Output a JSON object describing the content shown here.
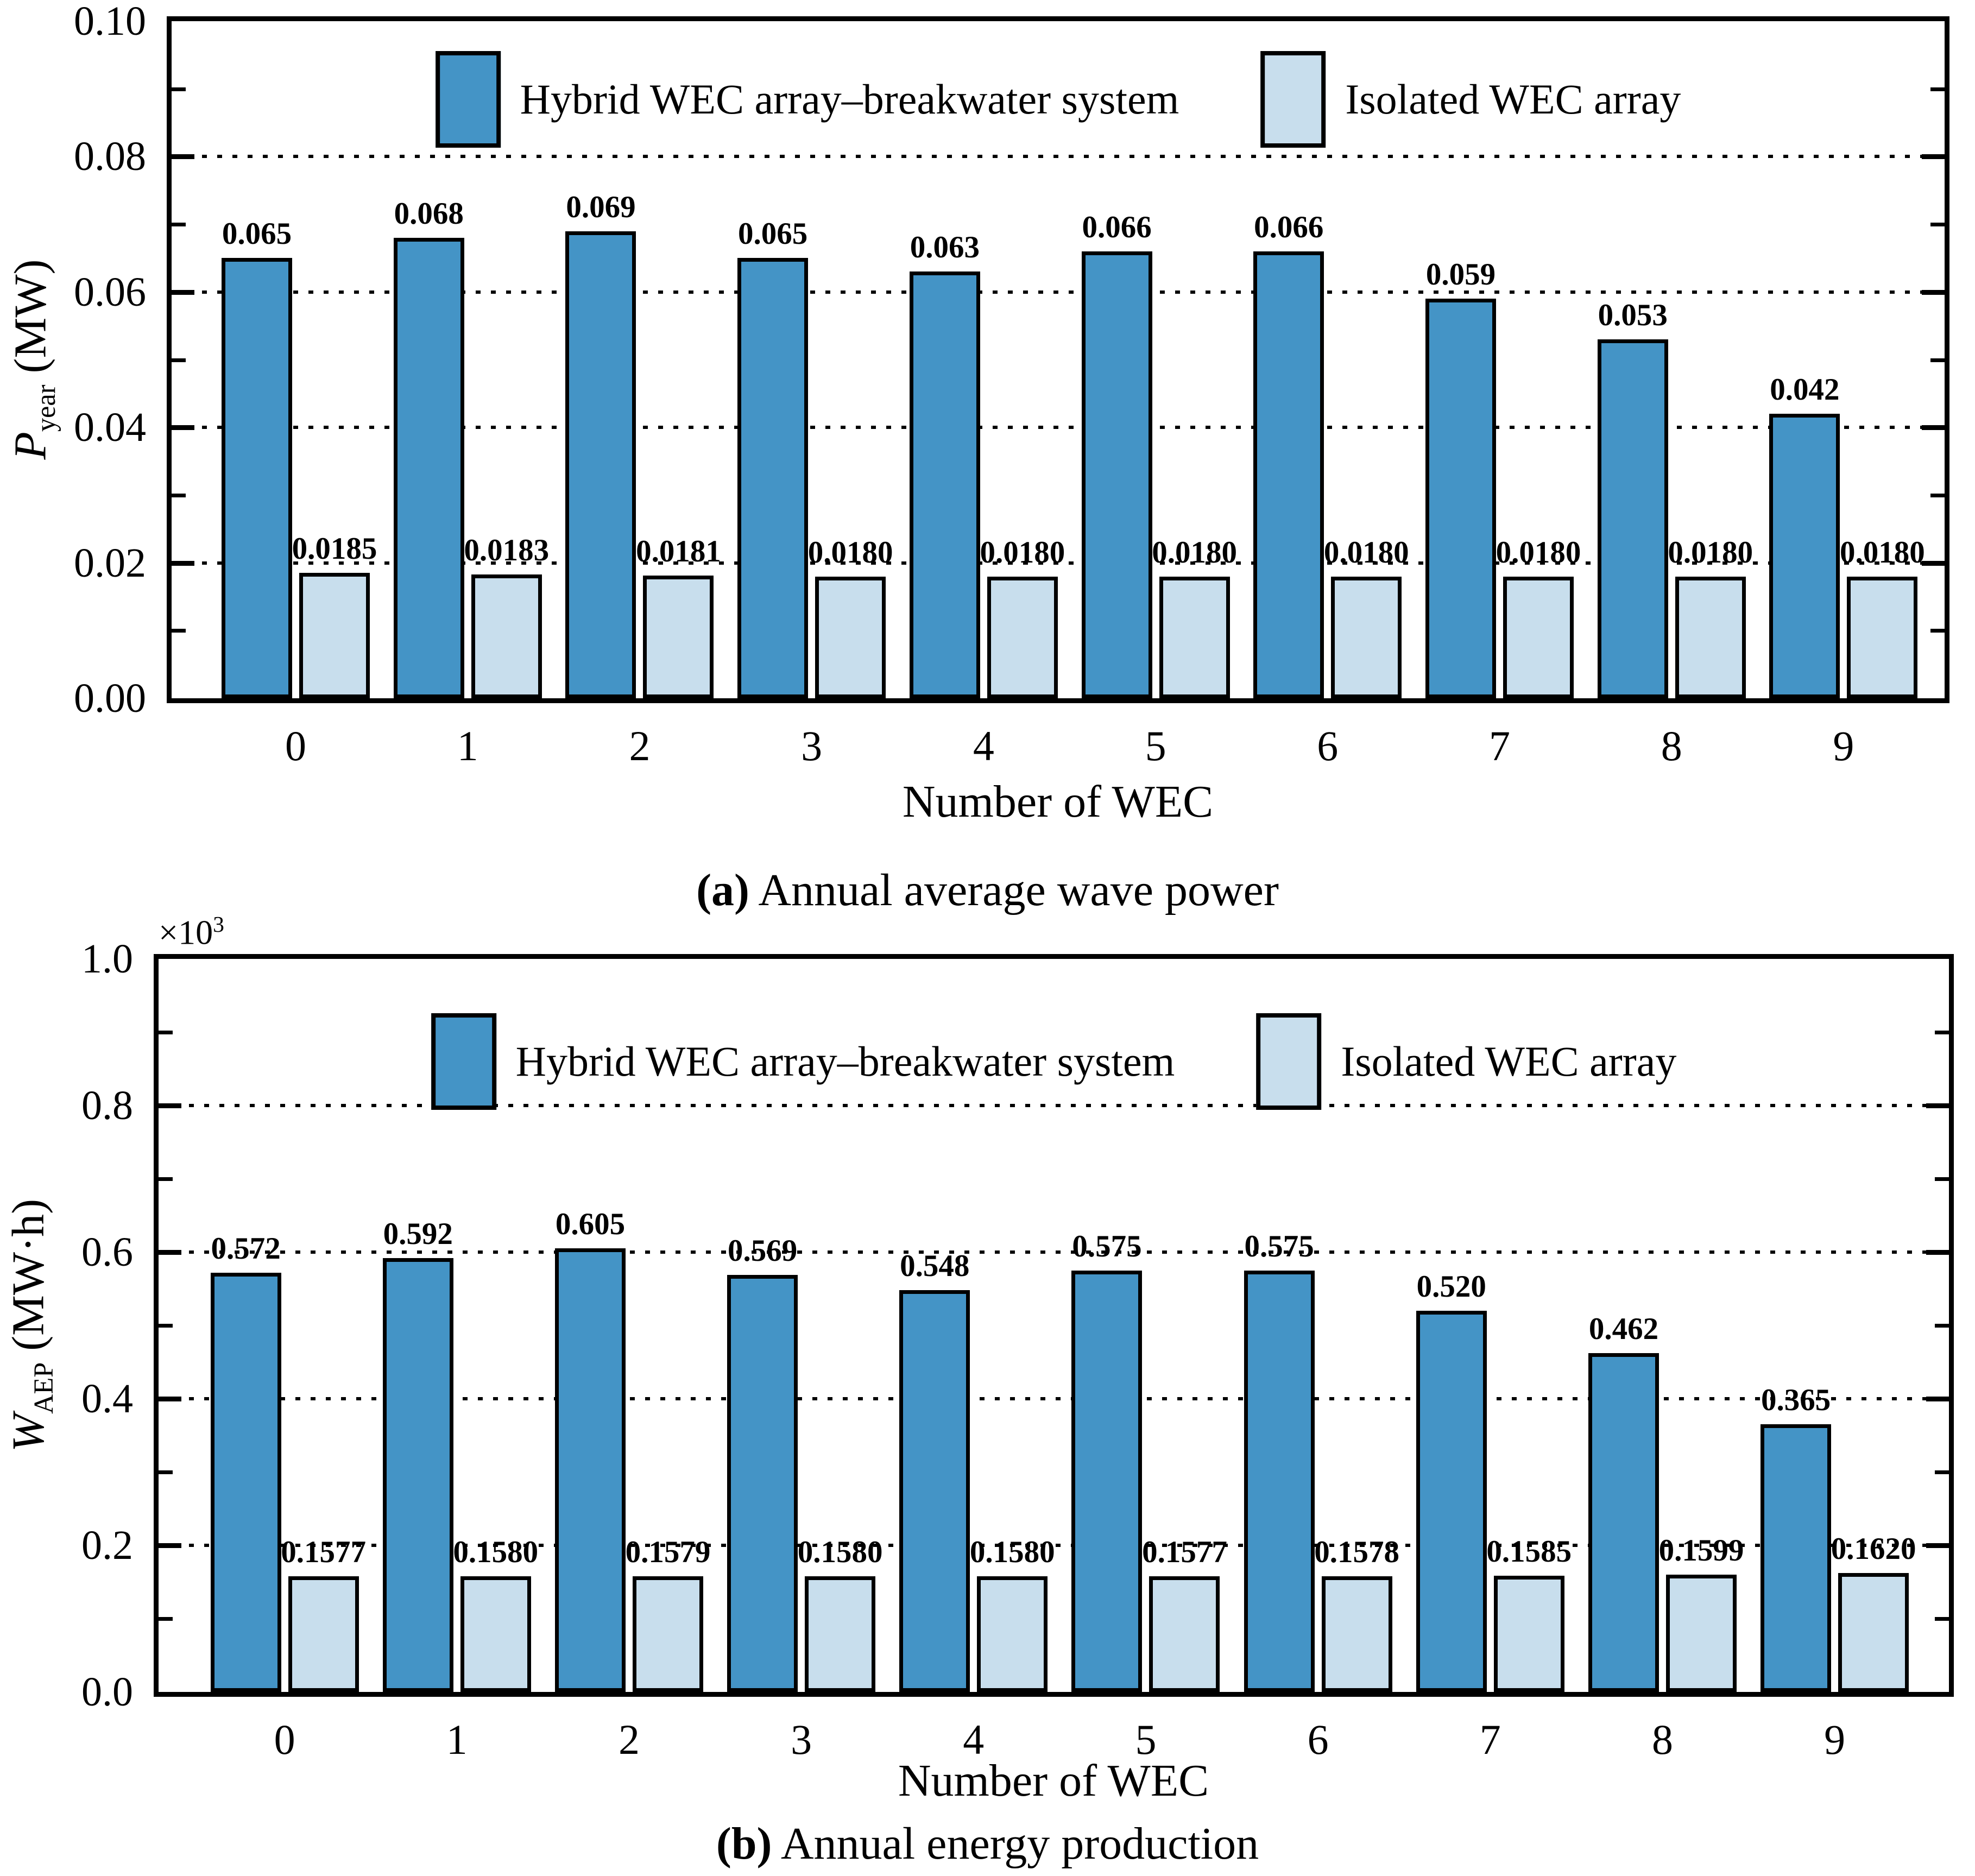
{
  "page": {
    "background": "#ffffff"
  },
  "colors": {
    "hybrid_fill": "#4494c6",
    "isolated_fill": "#c8deed",
    "edge": "#000000",
    "grid": "#000000"
  },
  "legend": {
    "hybrid_label": "Hybrid WEC array–breakwater system",
    "isolated_label": "Isolated WEC array"
  },
  "chart_data": [
    {
      "id": "a",
      "type": "bar",
      "caption_label": "(a)",
      "caption_text": " Annual average wave power",
      "xlabel": "Number of WEC",
      "ylabel": {
        "symbol": "P",
        "subscript": "year",
        "unit": "(MW)"
      },
      "categories": [
        "0",
        "1",
        "2",
        "3",
        "4",
        "5",
        "6",
        "7",
        "8",
        "9"
      ],
      "series": [
        {
          "name": "Hybrid WEC array–breakwater system",
          "values": [
            0.065,
            0.068,
            0.069,
            0.065,
            0.063,
            0.066,
            0.066,
            0.059,
            0.053,
            0.042
          ],
          "labels": [
            "0.065",
            "0.068",
            "0.069",
            "0.065",
            "0.063",
            "0.066",
            "0.066",
            "0.059",
            "0.053",
            "0.042"
          ]
        },
        {
          "name": "Isolated WEC array",
          "values": [
            0.0185,
            0.0183,
            0.0181,
            0.018,
            0.018,
            0.018,
            0.018,
            0.018,
            0.018,
            0.018
          ],
          "labels": [
            "0.0185",
            "0.0183",
            "0.0181",
            "0.0180",
            "0.0180",
            "0.0180",
            "0.0180",
            "0.0180",
            "0.0180",
            "0.0180"
          ]
        }
      ],
      "ylim": [
        0,
        0.1
      ],
      "y_tick_values": [
        0,
        0.02,
        0.04,
        0.06,
        0.08,
        0.1
      ],
      "y_tick_labels": [
        "0.00",
        "0.02",
        "0.04",
        "0.06",
        "0.08",
        "0.10"
      ],
      "grid_values": [
        0.02,
        0.04,
        0.06,
        0.08
      ],
      "grid": "dotted-horizontal",
      "legend_position": "upper-center-inside"
    },
    {
      "id": "b",
      "type": "bar",
      "caption_label": "(b)",
      "caption_text": " Annual energy production",
      "xlabel": "Number of WEC",
      "ylabel": {
        "symbol": "W",
        "subscript": "AEP",
        "unit": "(MW·h)"
      },
      "y_multiplier": {
        "base": "×10",
        "exp": "3"
      },
      "categories": [
        "0",
        "1",
        "2",
        "3",
        "4",
        "5",
        "6",
        "7",
        "8",
        "9"
      ],
      "series": [
        {
          "name": "Hybrid WEC array–breakwater system",
          "values": [
            0.572,
            0.592,
            0.605,
            0.569,
            0.548,
            0.575,
            0.575,
            0.52,
            0.462,
            0.365
          ],
          "labels": [
            "0.572",
            "0.592",
            "0.605",
            "0.569",
            "0.548",
            "0.575",
            "0.575",
            "0.520",
            "0.462",
            "0.365"
          ]
        },
        {
          "name": "Isolated WEC array",
          "values": [
            0.1577,
            0.158,
            0.1579,
            0.158,
            0.158,
            0.1577,
            0.1578,
            0.1585,
            0.1599,
            0.162
          ],
          "labels": [
            "0.1577",
            "0.1580",
            "0.1579",
            "0.1580",
            "0.1580",
            "0.1577",
            "0.1578",
            "0.1585",
            "0.1599",
            "0.1620"
          ]
        }
      ],
      "ylim": [
        0,
        1.0
      ],
      "y_tick_values": [
        0,
        0.2,
        0.4,
        0.6,
        0.8,
        1.0
      ],
      "y_tick_labels": [
        "0.0",
        "0.2",
        "0.4",
        "0.6",
        "0.8",
        "1.0"
      ],
      "grid_values": [
        0.2,
        0.4,
        0.6,
        0.8
      ],
      "grid": "dotted-horizontal",
      "legend_position": "upper-center-inside"
    }
  ]
}
